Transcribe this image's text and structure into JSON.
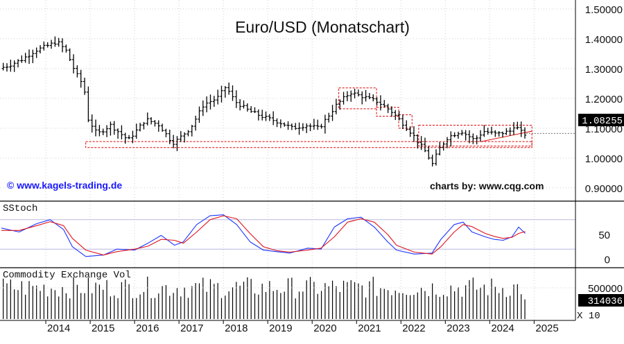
{
  "chart_data": [
    {
      "type": "ohlc",
      "title": "Euro/USD (Monatschart)",
      "watermark_left": "© www.kagels-trading.de",
      "watermark_right": "charts by: www.cqg.com",
      "y_ticks": [
        {
          "value": 1.5,
          "label": "1.50000"
        },
        {
          "value": 1.4,
          "label": "1.40000"
        },
        {
          "value": 1.3,
          "label": "1.30000"
        },
        {
          "value": 1.2,
          "label": "1.20000"
        },
        {
          "value": 1.1,
          "label": "1.10000"
        },
        {
          "value": 1.0,
          "label": "1.00000"
        },
        {
          "value": 0.9,
          "label": "0.90000"
        }
      ],
      "ylim": [
        0.86,
        1.53
      ],
      "last_price_label": "1.08255",
      "last_price": 1.08255,
      "x_labels": [
        "2014",
        "2015",
        "2016",
        "2017",
        "2018",
        "2019",
        "2020",
        "2021",
        "2022",
        "2023",
        "2024",
        "2025"
      ],
      "year_values": [
        2014,
        2015,
        2016,
        2017,
        2018,
        2019,
        2020,
        2021,
        2022,
        2023,
        2024,
        2025
      ],
      "price_path": [
        [
          2013.0,
          1.3
        ],
        [
          2013.2,
          1.31
        ],
        [
          2013.5,
          1.33
        ],
        [
          2013.8,
          1.36
        ],
        [
          2014.3,
          1.39
        ],
        [
          2014.5,
          1.36
        ],
        [
          2014.7,
          1.29
        ],
        [
          2014.9,
          1.24
        ],
        [
          2015.0,
          1.13
        ],
        [
          2015.2,
          1.08
        ],
        [
          2015.5,
          1.11
        ],
        [
          2015.9,
          1.06
        ],
        [
          2016.3,
          1.13
        ],
        [
          2016.6,
          1.11
        ],
        [
          2016.9,
          1.05
        ],
        [
          2017.0,
          1.06
        ],
        [
          2017.3,
          1.1
        ],
        [
          2017.6,
          1.18
        ],
        [
          2017.9,
          1.2
        ],
        [
          2018.1,
          1.24
        ],
        [
          2018.3,
          1.19
        ],
        [
          2018.6,
          1.16
        ],
        [
          2018.9,
          1.14
        ],
        [
          2019.3,
          1.12
        ],
        [
          2019.6,
          1.1
        ],
        [
          2019.9,
          1.11
        ],
        [
          2020.2,
          1.1
        ],
        [
          2020.6,
          1.18
        ],
        [
          2020.9,
          1.22
        ],
        [
          2021.3,
          1.2
        ],
        [
          2021.5,
          1.19
        ],
        [
          2021.8,
          1.16
        ],
        [
          2022.0,
          1.13
        ],
        [
          2022.3,
          1.08
        ],
        [
          2022.6,
          1.02
        ],
        [
          2022.75,
          0.98
        ],
        [
          2022.9,
          1.03
        ],
        [
          2023.1,
          1.07
        ],
        [
          2023.4,
          1.09
        ],
        [
          2023.7,
          1.06
        ],
        [
          2023.9,
          1.09
        ],
        [
          2024.2,
          1.08
        ],
        [
          2024.5,
          1.09
        ],
        [
          2024.6,
          1.11
        ],
        [
          2024.8,
          1.08
        ]
      ],
      "annotation_boxes": [
        {
          "x": [
            2020.6,
            2021.45
          ],
          "y": [
            1.165,
            1.235
          ]
        },
        {
          "x": [
            2021.45,
            2021.95
          ],
          "y": [
            1.14,
            1.17
          ]
        },
        {
          "x": [
            2021.95,
            2022.25
          ],
          "y": [
            1.1,
            1.145
          ]
        },
        {
          "x": [
            2022.4,
            2024.95
          ],
          "y": [
            1.04,
            1.11
          ]
        },
        {
          "x": [
            2014.9,
            2024.95
          ],
          "y": [
            1.035,
            1.055
          ]
        }
      ],
      "support_line": {
        "x": [
          2023.8,
          2024.95
        ],
        "y": [
          1.055,
          1.09
        ]
      }
    },
    {
      "type": "line",
      "title": "SStoch",
      "y_ticks": [
        {
          "value": 50,
          "label": "50"
        },
        {
          "value": 0,
          "label": "0"
        }
      ],
      "ylim": [
        -15,
        115
      ],
      "levels": [
        80,
        20
      ],
      "series": [
        {
          "color": "#1a33ff",
          "points": [
            [
              2013.0,
              63
            ],
            [
              2013.4,
              55
            ],
            [
              2013.8,
              72
            ],
            [
              2014.1,
              80
            ],
            [
              2014.4,
              60
            ],
            [
              2014.6,
              25
            ],
            [
              2014.9,
              5
            ],
            [
              2015.3,
              8
            ],
            [
              2015.6,
              20
            ],
            [
              2016.0,
              18
            ],
            [
              2016.3,
              32
            ],
            [
              2016.6,
              48
            ],
            [
              2016.9,
              28
            ],
            [
              2017.1,
              35
            ],
            [
              2017.4,
              70
            ],
            [
              2017.7,
              88
            ],
            [
              2018.0,
              90
            ],
            [
              2018.3,
              70
            ],
            [
              2018.6,
              35
            ],
            [
              2018.9,
              18
            ],
            [
              2019.2,
              15
            ],
            [
              2019.5,
              12
            ],
            [
              2019.9,
              22
            ],
            [
              2020.2,
              20
            ],
            [
              2020.5,
              65
            ],
            [
              2020.8,
              82
            ],
            [
              2021.1,
              85
            ],
            [
              2021.4,
              65
            ],
            [
              2021.7,
              35
            ],
            [
              2021.9,
              18
            ],
            [
              2022.3,
              10
            ],
            [
              2022.7,
              12
            ],
            [
              2022.9,
              40
            ],
            [
              2023.2,
              70
            ],
            [
              2023.4,
              75
            ],
            [
              2023.6,
              55
            ],
            [
              2023.9,
              45
            ],
            [
              2024.1,
              40
            ],
            [
              2024.3,
              38
            ],
            [
              2024.5,
              45
            ],
            [
              2024.65,
              65
            ],
            [
              2024.8,
              52
            ]
          ]
        },
        {
          "color": "#e0141e",
          "points": [
            [
              2013.0,
              58
            ],
            [
              2013.4,
              58
            ],
            [
              2013.8,
              68
            ],
            [
              2014.1,
              76
            ],
            [
              2014.4,
              68
            ],
            [
              2014.6,
              42
            ],
            [
              2014.9,
              18
            ],
            [
              2015.3,
              8
            ],
            [
              2015.6,
              15
            ],
            [
              2016.0,
              20
            ],
            [
              2016.3,
              26
            ],
            [
              2016.6,
              40
            ],
            [
              2016.9,
              38
            ],
            [
              2017.1,
              32
            ],
            [
              2017.4,
              55
            ],
            [
              2017.7,
              80
            ],
            [
              2018.0,
              88
            ],
            [
              2018.3,
              82
            ],
            [
              2018.6,
              52
            ],
            [
              2018.9,
              25
            ],
            [
              2019.2,
              17
            ],
            [
              2019.5,
              14
            ],
            [
              2019.9,
              18
            ],
            [
              2020.2,
              22
            ],
            [
              2020.5,
              45
            ],
            [
              2020.8,
              75
            ],
            [
              2021.1,
              82
            ],
            [
              2021.4,
              75
            ],
            [
              2021.7,
              50
            ],
            [
              2021.9,
              28
            ],
            [
              2022.3,
              14
            ],
            [
              2022.7,
              10
            ],
            [
              2022.9,
              25
            ],
            [
              2023.2,
              55
            ],
            [
              2023.4,
              70
            ],
            [
              2023.6,
              66
            ],
            [
              2023.9,
              52
            ],
            [
              2024.1,
              46
            ],
            [
              2024.3,
              42
            ],
            [
              2024.5,
              44
            ],
            [
              2024.65,
              52
            ],
            [
              2024.8,
              56
            ]
          ]
        }
      ]
    },
    {
      "type": "bar",
      "title": "Commodity Exchange Vol",
      "y_ticks": [
        {
          "value": 500000,
          "label": "500000"
        }
      ],
      "ylim": [
        0,
        800000
      ],
      "last_value_label": "314036",
      "last_value": 314036,
      "multiplier_label": "X 10",
      "volume_range": [
        330000,
        680000
      ]
    }
  ]
}
